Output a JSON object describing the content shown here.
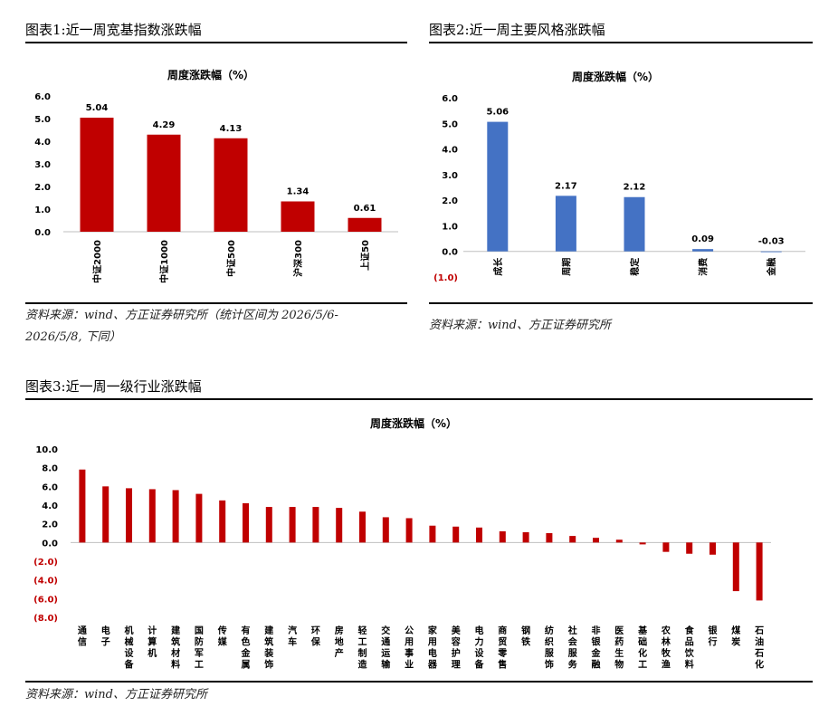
{
  "panels": {
    "p1": {
      "title": "图表1:近一周宽基指数涨跌幅",
      "source_line1": "资料来源：wind、方正证券研究所（统计区间为 2026/5/6-",
      "source_line2": "2026/5/8, 下同）"
    },
    "p2": {
      "title": "图表2:近一周主要风格涨跌幅",
      "source_line1": "资料来源：wind、方正证券研究所"
    },
    "p3": {
      "title": "图表3:近一周一级行业涨跌幅",
      "source_line1": "资料来源：wind、方正证券研究所"
    }
  },
  "colors": {
    "red": "#C00000",
    "blue": "#4472C4",
    "negative_tick": "#C00000"
  },
  "chart_data": [
    {
      "type": "bar",
      "title": "周度涨跌幅（%）",
      "categories": [
        "中证2000",
        "中证1000",
        "中证500",
        "沪深300",
        "上证50"
      ],
      "values": [
        5.04,
        4.29,
        4.13,
        1.34,
        0.61
      ],
      "value_labels": [
        "5.04",
        "4.29",
        "4.13",
        "1.34",
        "0.61"
      ],
      "yticks": [
        "0.0",
        "1.0",
        "2.0",
        "3.0",
        "4.0",
        "5.0",
        "6.0"
      ],
      "ylim": [
        0,
        6
      ],
      "color": "#C00000"
    },
    {
      "type": "bar",
      "title": "周度涨跌幅（%）",
      "categories": [
        "成长",
        "周期",
        "稳定",
        "消费",
        "金融"
      ],
      "values": [
        5.06,
        2.17,
        2.12,
        0.09,
        -0.03
      ],
      "value_labels": [
        "5.06",
        "2.17",
        "2.12",
        "0.09",
        "-0.03"
      ],
      "yticks": [
        "(1.0)",
        "0.0",
        "1.0",
        "2.0",
        "3.0",
        "4.0",
        "5.0",
        "6.0"
      ],
      "ylim": [
        -1,
        6
      ],
      "color": "#4472C4"
    },
    {
      "type": "bar",
      "title": "周度涨跌幅（%）",
      "categories": [
        "通信",
        "电子",
        "机械设备",
        "计算机",
        "建筑材料",
        "国防军工",
        "传媒",
        "有色金属",
        "建筑装饰",
        "汽车",
        "环保",
        "房地产",
        "轻工制造",
        "交通运输",
        "公用事业",
        "家用电器",
        "美容护理",
        "电力设备",
        "商贸零售",
        "钢铁",
        "纺织服饰",
        "社会服务",
        "非银金融",
        "医药生物",
        "基础化工",
        "农林牧渔",
        "食品饮料",
        "银行",
        "煤炭",
        "石油石化"
      ],
      "values": [
        7.8,
        6.0,
        5.8,
        5.7,
        5.6,
        5.2,
        4.5,
        4.2,
        3.8,
        3.8,
        3.8,
        3.7,
        3.3,
        2.7,
        2.6,
        1.8,
        1.7,
        1.6,
        1.2,
        1.1,
        1.0,
        0.7,
        0.5,
        0.3,
        -0.2,
        -1.0,
        -1.2,
        -1.3,
        -5.2,
        -6.2
      ],
      "yticks": [
        "(8.0)",
        "(6.0)",
        "(4.0)",
        "(2.0)",
        "0.0",
        "2.0",
        "4.0",
        "6.0",
        "8.0",
        "10.0"
      ],
      "ylim": [
        -8,
        10
      ],
      "color": "#C00000"
    }
  ]
}
